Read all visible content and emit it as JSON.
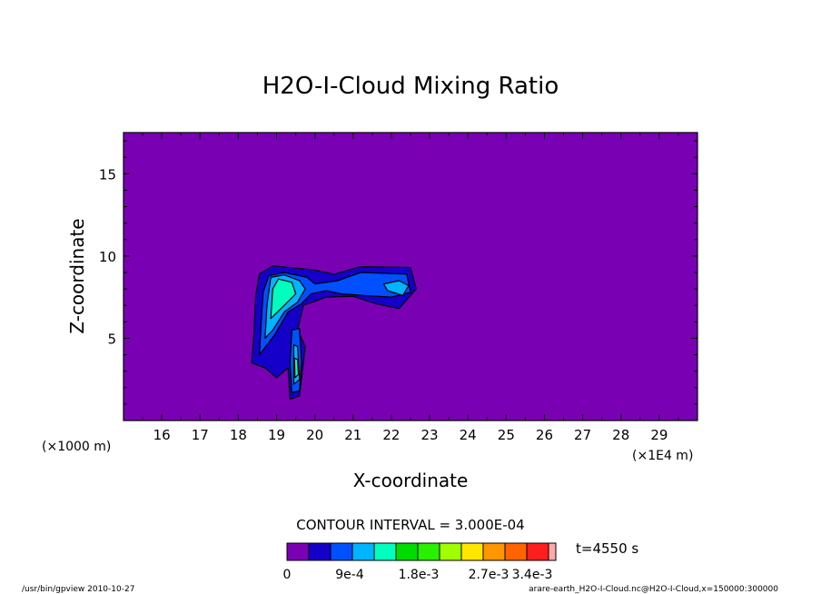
{
  "chart_data": {
    "type": "contour",
    "title": "H2O-I-Cloud Mixing Ratio",
    "xlabel": "X-coordinate",
    "ylabel": "Z-coordinate",
    "x_unit_left": "(×1000 m)",
    "x_unit_right": "(×1E4 m)",
    "x_ticks": [
      16,
      17,
      18,
      19,
      20,
      21,
      22,
      23,
      24,
      25,
      26,
      27,
      28,
      29
    ],
    "y_ticks": [
      5,
      10,
      15
    ],
    "xlim": [
      15,
      30
    ],
    "ylim": [
      0,
      17.5
    ],
    "contour_interval": "CONTOUR INTERVAL = 3.000E-04",
    "time_label": "t=4550 s",
    "colorbar": {
      "colors": [
        "#7a00b4",
        "#1400c8",
        "#0050ff",
        "#00b4ff",
        "#00ffbe",
        "#00dc00",
        "#28f000",
        "#a0ff00",
        "#ffe600",
        "#ff9600",
        "#ff6400",
        "#ff1e1e",
        "#ffaaaa"
      ],
      "labels": [
        "0",
        "9e-4",
        "1.8e-3",
        "2.7e-3",
        "3.4e-3"
      ]
    },
    "background_color": "#7a00b4",
    "regions": [
      {
        "level": 1,
        "color": "#1400c8",
        "points": [
          [
            18.35,
            3.5
          ],
          [
            18.4,
            5.0
          ],
          [
            18.45,
            7.5
          ],
          [
            18.55,
            8.9
          ],
          [
            18.9,
            9.4
          ],
          [
            20.0,
            9.15
          ],
          [
            20.5,
            8.9
          ],
          [
            21.2,
            9.35
          ],
          [
            22.5,
            9.3
          ],
          [
            22.65,
            8.0
          ],
          [
            22.2,
            6.8
          ],
          [
            21.6,
            7.1
          ],
          [
            21.0,
            7.55
          ],
          [
            20.3,
            7.5
          ],
          [
            19.7,
            7.0
          ],
          [
            19.55,
            5.5
          ],
          [
            19.75,
            4.5
          ],
          [
            19.6,
            1.5
          ],
          [
            19.35,
            1.3
          ],
          [
            19.3,
            3.2
          ],
          [
            19.0,
            2.6
          ],
          [
            18.7,
            3.2
          ]
        ]
      },
      {
        "level": 2,
        "color": "#0050ff",
        "points": [
          [
            18.55,
            4.0
          ],
          [
            18.6,
            6.0
          ],
          [
            18.65,
            7.8
          ],
          [
            18.8,
            8.8
          ],
          [
            19.2,
            9.0
          ],
          [
            19.8,
            8.7
          ],
          [
            20.0,
            8.3
          ],
          [
            20.6,
            8.5
          ],
          [
            21.2,
            9.0
          ],
          [
            22.4,
            8.9
          ],
          [
            22.5,
            7.8
          ],
          [
            22.0,
            7.5
          ],
          [
            21.3,
            7.6
          ],
          [
            20.7,
            7.7
          ],
          [
            20.3,
            7.9
          ],
          [
            19.9,
            7.7
          ],
          [
            19.65,
            7.1
          ],
          [
            19.3,
            6.6
          ],
          [
            18.95,
            5.2
          ]
        ]
      },
      {
        "level": 2,
        "color": "#0050ff",
        "points": [
          [
            19.4,
            5.5
          ],
          [
            19.6,
            5.6
          ],
          [
            19.65,
            3.5
          ],
          [
            19.6,
            1.8
          ],
          [
            19.4,
            1.7
          ],
          [
            19.35,
            3.5
          ]
        ]
      },
      {
        "level": 3,
        "color": "#00b4ff",
        "points": [
          [
            18.7,
            5.0
          ],
          [
            18.75,
            7.0
          ],
          [
            18.85,
            8.7
          ],
          [
            19.2,
            8.85
          ],
          [
            19.6,
            8.5
          ],
          [
            19.75,
            8.0
          ],
          [
            19.55,
            7.2
          ],
          [
            19.2,
            6.6
          ],
          [
            18.9,
            5.5
          ]
        ]
      },
      {
        "level": 3,
        "color": "#00b4ff",
        "points": [
          [
            19.45,
            4.6
          ],
          [
            19.55,
            4.5
          ],
          [
            19.6,
            2.5
          ],
          [
            19.45,
            2.2
          ]
        ]
      },
      {
        "level": 3,
        "color": "#00b4ff",
        "points": [
          [
            21.8,
            8.3
          ],
          [
            22.2,
            8.5
          ],
          [
            22.45,
            8.2
          ],
          [
            22.3,
            7.6
          ],
          [
            21.9,
            7.9
          ]
        ]
      },
      {
        "level": 4,
        "color": "#00ffbe",
        "points": [
          [
            18.85,
            6.2
          ],
          [
            18.9,
            8.0
          ],
          [
            19.05,
            8.6
          ],
          [
            19.4,
            8.4
          ],
          [
            19.5,
            7.7
          ],
          [
            19.2,
            7.0
          ]
        ]
      },
      {
        "level": 4,
        "color": "#00ffbe",
        "points": [
          [
            19.47,
            3.8
          ],
          [
            19.55,
            3.7
          ],
          [
            19.57,
            2.8
          ],
          [
            19.48,
            2.6
          ]
        ]
      }
    ]
  },
  "footer": {
    "left": "/usr/bin/gpview   2010-10-27",
    "right": "arare-earth_H2O-I-Cloud.nc@H2O-I-Cloud,x=150000:300000"
  }
}
